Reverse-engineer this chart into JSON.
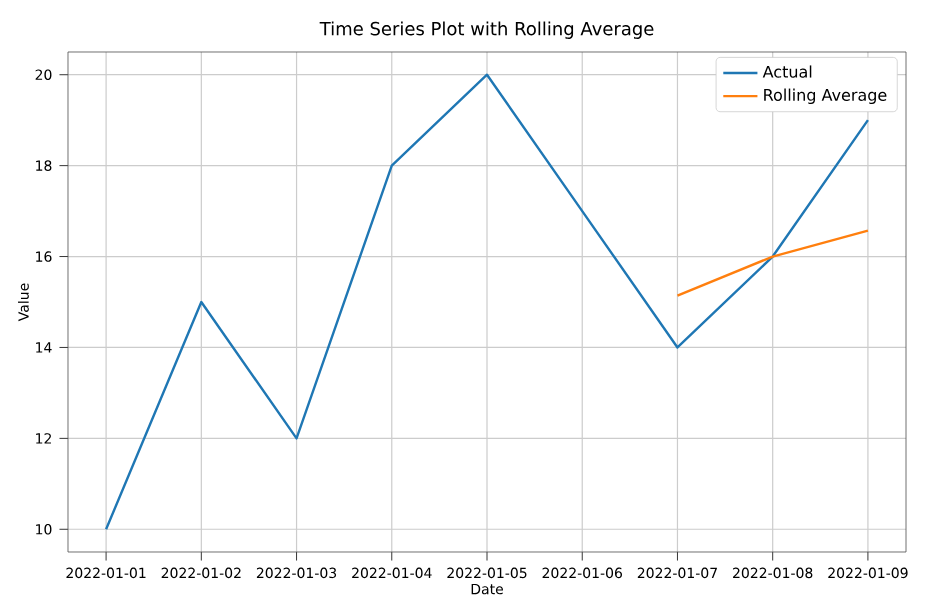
{
  "chart_data": {
    "type": "line",
    "title": "Time Series Plot with Rolling Average",
    "xlabel": "Date",
    "ylabel": "Value",
    "x": [
      "2022-01-01",
      "2022-01-02",
      "2022-01-03",
      "2022-01-04",
      "2022-01-05",
      "2022-01-06",
      "2022-01-07",
      "2022-01-08",
      "2022-01-09"
    ],
    "series": [
      {
        "name": "Actual",
        "color": "#1f77b4",
        "values": [
          10,
          15,
          12,
          18,
          20,
          17,
          14,
          16,
          19
        ]
      },
      {
        "name": "Rolling Average",
        "color": "#ff7f0e",
        "x": [
          "2022-01-07",
          "2022-01-08",
          "2022-01-09"
        ],
        "values": [
          15.14,
          16.0,
          16.57
        ]
      }
    ],
    "xlim": [
      "2021-12-31T14:24",
      "2022-01-09T09:36"
    ],
    "xticks": [
      "2022-01-01",
      "2022-01-02",
      "2022-01-03",
      "2022-01-04",
      "2022-01-05",
      "2022-01-06",
      "2022-01-07",
      "2022-01-08",
      "2022-01-09"
    ],
    "ylim": [
      9.5,
      20.5
    ],
    "yticks": [
      10,
      12,
      14,
      16,
      18,
      20
    ],
    "grid": true,
    "legend": "top right",
    "line_style": "solid",
    "marker": "none"
  }
}
